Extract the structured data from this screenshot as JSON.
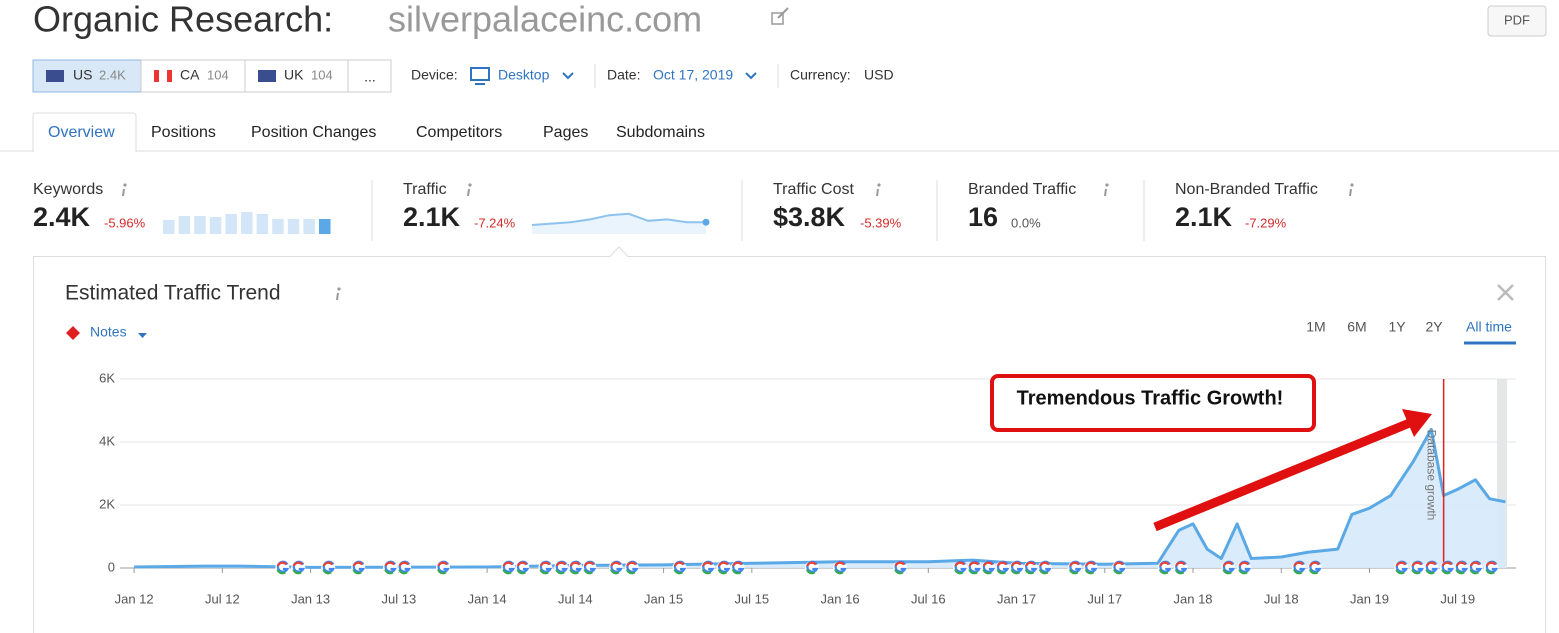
{
  "header": {
    "title": "Organic Research:",
    "domain": "silverpalaceinc.com",
    "pdf": "PDF"
  },
  "databases": [
    {
      "code": "US",
      "count": "2.4K"
    },
    {
      "code": "CA",
      "count": "104"
    },
    {
      "code": "UK",
      "count": "104"
    },
    {
      "code": "..."
    }
  ],
  "filters": {
    "device_label": "Device:",
    "device": "Desktop",
    "date_label": "Date:",
    "date": "Oct 17, 2019",
    "currency_label": "Currency:",
    "currency": "USD"
  },
  "tabs": [
    "Overview",
    "Positions",
    "Position Changes",
    "Competitors",
    "Pages",
    "Subdomains"
  ],
  "metrics": [
    {
      "label": "Keywords",
      "value": "2.4K",
      "change": "-5.96%",
      "sparkline": [
        14,
        18,
        18,
        17,
        20,
        22,
        20,
        15,
        15,
        15,
        15
      ]
    },
    {
      "label": "Traffic",
      "value": "2.1K",
      "change": "-7.24%",
      "sparkline": [
        5,
        6,
        7,
        9,
        12,
        13,
        8,
        9,
        7,
        7
      ]
    },
    {
      "label": "Traffic Cost",
      "value": "$3.8K",
      "change": "-5.39%"
    },
    {
      "label": "Branded Traffic",
      "value": "16",
      "change": "0.0%"
    },
    {
      "label": "Non-Branded Traffic",
      "value": "2.1K",
      "change": "-7.29%"
    }
  ],
  "chart_data": {
    "type": "area",
    "title": "Estimated Traffic Trend",
    "notes": "Notes",
    "periods": [
      "1M",
      "6M",
      "1Y",
      "2Y",
      "All time"
    ],
    "annotation": "Tremendous Traffic Growth!",
    "marker_label": "Database growth",
    "marker_x": 2019.42,
    "xlim": [
      2011.92,
      2019.83
    ],
    "xticks": [
      {
        "value": 2012.0,
        "label": "Jan 12"
      },
      {
        "value": 2012.5,
        "label": "Jul 12"
      },
      {
        "value": 2013.0,
        "label": "Jan 13"
      },
      {
        "value": 2013.5,
        "label": "Jul 13"
      },
      {
        "value": 2014.0,
        "label": "Jan 14"
      },
      {
        "value": 2014.5,
        "label": "Jul 14"
      },
      {
        "value": 2015.0,
        "label": "Jan 15"
      },
      {
        "value": 2015.5,
        "label": "Jul 15"
      },
      {
        "value": 2016.0,
        "label": "Jan 16"
      },
      {
        "value": 2016.5,
        "label": "Jul 16"
      },
      {
        "value": 2017.0,
        "label": "Jan 17"
      },
      {
        "value": 2017.5,
        "label": "Jul 17"
      },
      {
        "value": 2018.0,
        "label": "Jan 18"
      },
      {
        "value": 2018.5,
        "label": "Jul 18"
      },
      {
        "value": 2019.0,
        "label": "Jan 19"
      },
      {
        "value": 2019.5,
        "label": "Jul 19"
      }
    ],
    "ylim": [
      0,
      6000
    ],
    "yticks": [
      0,
      {
        "value": 2000,
        "label": "2K"
      },
      {
        "value": 4000,
        "label": "4K"
      },
      {
        "value": 6000,
        "label": "6K"
      }
    ],
    "grid": true,
    "x": [
      2012.0,
      2012.4,
      2012.6,
      2013.0,
      2014.0,
      2014.5,
      2015.0,
      2015.5,
      2016.0,
      2016.5,
      2016.75,
      2017.0,
      2017.5,
      2017.8,
      2017.92,
      2018.0,
      2018.08,
      2018.16,
      2018.25,
      2018.33,
      2018.5,
      2018.65,
      2018.82,
      2018.9,
      2019.0,
      2019.12,
      2019.25,
      2019.35,
      2019.42,
      2019.5,
      2019.6,
      2019.68,
      2019.77
    ],
    "series": [
      {
        "name": "Traffic",
        "color": "#5aa9e6",
        "values": [
          30,
          60,
          60,
          20,
          30,
          80,
          100,
          150,
          200,
          200,
          250,
          150,
          120,
          150,
          1200,
          1400,
          600,
          300,
          1400,
          300,
          350,
          500,
          600,
          1700,
          1900,
          2300,
          3400,
          4400,
          2300,
          2500,
          2800,
          2200,
          2100
        ]
      }
    ],
    "google_updates": [
      2012.84,
      2012.93,
      2013.1,
      2013.27,
      2013.45,
      2013.53,
      2013.75,
      2014.12,
      2014.2,
      2014.33,
      2014.42,
      2014.5,
      2014.58,
      2014.73,
      2014.82,
      2015.09,
      2015.25,
      2015.34,
      2015.42,
      2015.84,
      2016.0,
      2016.34,
      2016.68,
      2016.76,
      2016.84,
      2016.92,
      2017.0,
      2017.08,
      2017.16,
      2017.33,
      2017.42,
      2017.58,
      2017.84,
      2017.93,
      2018.2,
      2018.29,
      2018.6,
      2018.69,
      2019.18,
      2019.27,
      2019.35,
      2019.44,
      2019.52,
      2019.6,
      2019.69
    ]
  }
}
